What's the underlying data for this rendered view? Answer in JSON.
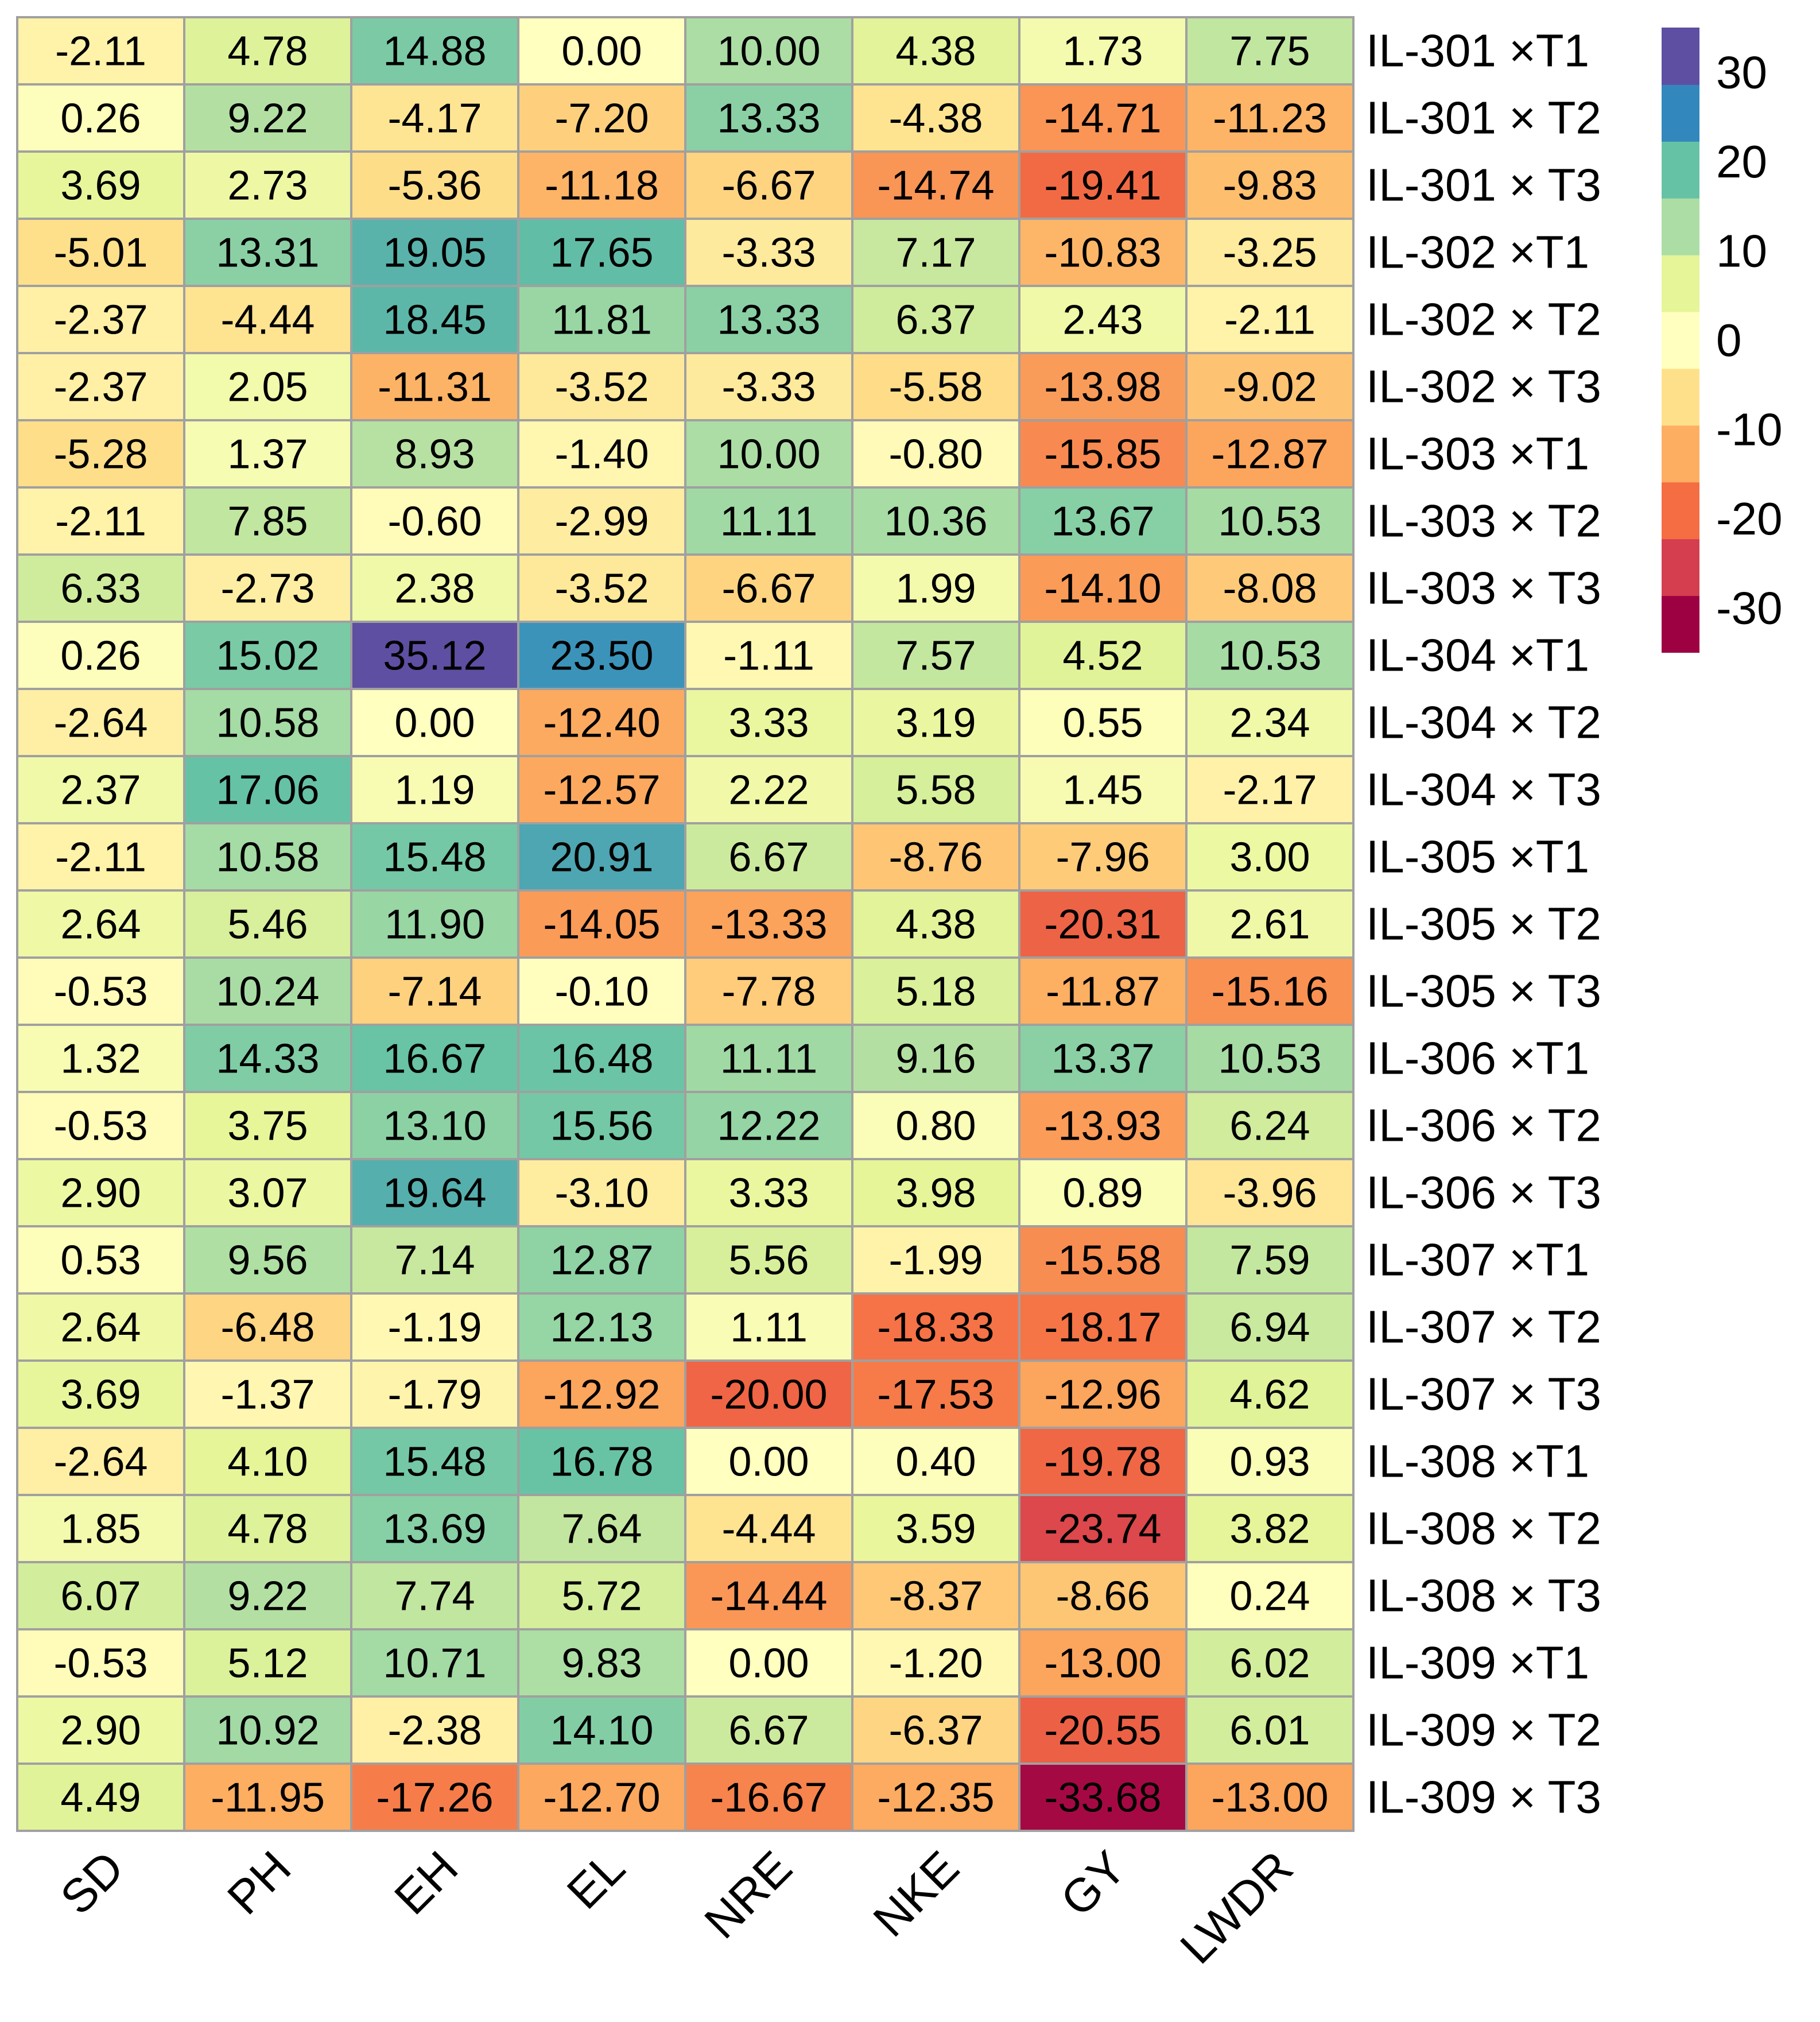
{
  "chart_data": {
    "type": "heatmap",
    "columns": [
      "SD",
      "PH",
      "EH",
      "EL",
      "NRE",
      "NKE",
      "GY",
      "LWDR"
    ],
    "rows": [
      "IL-301 ×T1",
      "IL-301 × T2",
      "IL-301 × T3",
      "IL-302 ×T1",
      "IL-302 × T2",
      "IL-302 × T3",
      "IL-303 ×T1",
      "IL-303 × T2",
      "IL-303 × T3",
      "IL-304 ×T1",
      "IL-304 × T2",
      "IL-304 × T3",
      "IL-305 ×T1",
      "IL-305 × T2",
      "IL-305 × T3",
      "IL-306 ×T1",
      "IL-306 × T2",
      "IL-306 × T3",
      "IL-307 ×T1",
      "IL-307 × T2",
      "IL-307 × T3",
      "IL-308 ×T1",
      "IL-308 × T2",
      "IL-308 × T3",
      "IL-309 ×T1",
      "IL-309 × T2",
      "IL-309 × T3"
    ],
    "values": [
      [
        "-2.11",
        "4.78",
        "14.88",
        "0.00",
        "10.00",
        "4.38",
        "1.73",
        "7.75"
      ],
      [
        "0.26",
        "9.22",
        "-4.17",
        "-7.20",
        "13.33",
        "-4.38",
        "-14.71",
        "-11.23"
      ],
      [
        "3.69",
        "2.73",
        "-5.36",
        "-11.18",
        "-6.67",
        "-14.74",
        "-19.41",
        "-9.83"
      ],
      [
        "-5.01",
        "13.31",
        "19.05",
        "17.65",
        "-3.33",
        "7.17",
        "-10.83",
        "-3.25"
      ],
      [
        "-2.37",
        "-4.44",
        "18.45",
        "11.81",
        "13.33",
        "6.37",
        "2.43",
        "-2.11"
      ],
      [
        "-2.37",
        "2.05",
        "-11.31",
        "-3.52",
        "-3.33",
        "-5.58",
        "-13.98",
        "-9.02"
      ],
      [
        "-5.28",
        "1.37",
        "8.93",
        "-1.40",
        "10.00",
        "-0.80",
        "-15.85",
        "-12.87"
      ],
      [
        "-2.11",
        "7.85",
        "-0.60",
        "-2.99",
        "11.11",
        "10.36",
        "13.67",
        "10.53"
      ],
      [
        "6.33",
        "-2.73",
        "2.38",
        "-3.52",
        "-6.67",
        "1.99",
        "-14.10",
        "-8.08"
      ],
      [
        "0.26",
        "15.02",
        "35.12",
        "23.50",
        "-1.11",
        "7.57",
        "4.52",
        "10.53"
      ],
      [
        "-2.64",
        "10.58",
        "0.00",
        "-12.40",
        "3.33",
        "3.19",
        "0.55",
        "2.34"
      ],
      [
        "2.37",
        "17.06",
        "1.19",
        "-12.57",
        "2.22",
        "5.58",
        "1.45",
        "-2.17"
      ],
      [
        "-2.11",
        "10.58",
        "15.48",
        "20.91",
        "6.67",
        "-8.76",
        "-7.96",
        "3.00"
      ],
      [
        "2.64",
        "5.46",
        "11.90",
        "-14.05",
        "-13.33",
        "4.38",
        "-20.31",
        "2.61"
      ],
      [
        "-0.53",
        "10.24",
        "-7.14",
        "-0.10",
        "-7.78",
        "5.18",
        "-11.87",
        "-15.16"
      ],
      [
        "1.32",
        "14.33",
        "16.67",
        "16.48",
        "11.11",
        "9.16",
        "13.37",
        "10.53"
      ],
      [
        "-0.53",
        "3.75",
        "13.10",
        "15.56",
        "12.22",
        "0.80",
        "-13.93",
        "6.24"
      ],
      [
        "2.90",
        "3.07",
        "19.64",
        "-3.10",
        "3.33",
        "3.98",
        "0.89",
        "-3.96"
      ],
      [
        "0.53",
        "9.56",
        "7.14",
        "12.87",
        "5.56",
        "-1.99",
        "-15.58",
        "7.59"
      ],
      [
        "2.64",
        "-6.48",
        "-1.19",
        "12.13",
        "1.11",
        "-18.33",
        "-18.17",
        "6.94"
      ],
      [
        "3.69",
        "-1.37",
        "-1.79",
        "-12.92",
        "-20.00",
        "-17.53",
        "-12.96",
        "4.62"
      ],
      [
        "-2.64",
        "4.10",
        "15.48",
        "16.78",
        "0.00",
        "0.40",
        "-19.78",
        "0.93"
      ],
      [
        "1.85",
        "4.78",
        "13.69",
        "7.64",
        "-4.44",
        "3.59",
        "-23.74",
        "3.82"
      ],
      [
        "6.07",
        "9.22",
        "7.74",
        "5.72",
        "-14.44",
        "-8.37",
        "-8.66",
        "0.24"
      ],
      [
        "-0.53",
        "5.12",
        "10.71",
        "9.83",
        "0.00",
        "-1.20",
        "-13.00",
        "6.02"
      ],
      [
        "2.90",
        "10.92",
        "-2.38",
        "14.10",
        "6.67",
        "-6.37",
        "-20.55",
        "6.01"
      ],
      [
        "4.49",
        "-11.95",
        "-17.26",
        "-12.70",
        "-16.67",
        "-12.35",
        "-33.68",
        "-13.00"
      ]
    ],
    "colorbar": {
      "ticks": [
        "30",
        "20",
        "10",
        "0",
        "-10",
        "-20",
        "-30"
      ],
      "range": [
        -35,
        35
      ],
      "stops": [
        {
          "value": 35,
          "color": "#5E4FA2"
        },
        {
          "value": 25,
          "color": "#3288BD"
        },
        {
          "value": 17,
          "color": "#66C2A5"
        },
        {
          "value": 10,
          "color": "#ABDDA4"
        },
        {
          "value": 4,
          "color": "#E6F598"
        },
        {
          "value": 0,
          "color": "#FFFFBF"
        },
        {
          "value": -5,
          "color": "#FEE08B"
        },
        {
          "value": -12,
          "color": "#FDAE61"
        },
        {
          "value": -19,
          "color": "#F46D43"
        },
        {
          "value": -25,
          "color": "#D53E4F"
        },
        {
          "value": -35,
          "color": "#9E0142"
        }
      ],
      "bands": [
        "#9E0142",
        "#D53E4F",
        "#F46D43",
        "#FDAE61",
        "#FEE08B",
        "#FFFFBF",
        "#E6F598",
        "#ABDDA4",
        "#66C2A5",
        "#3288BD",
        "#5E4FA2"
      ]
    },
    "legend_position": "top-right",
    "grid": true,
    "cell_border_color": "#A0A0A0",
    "text_color": "#000000"
  }
}
